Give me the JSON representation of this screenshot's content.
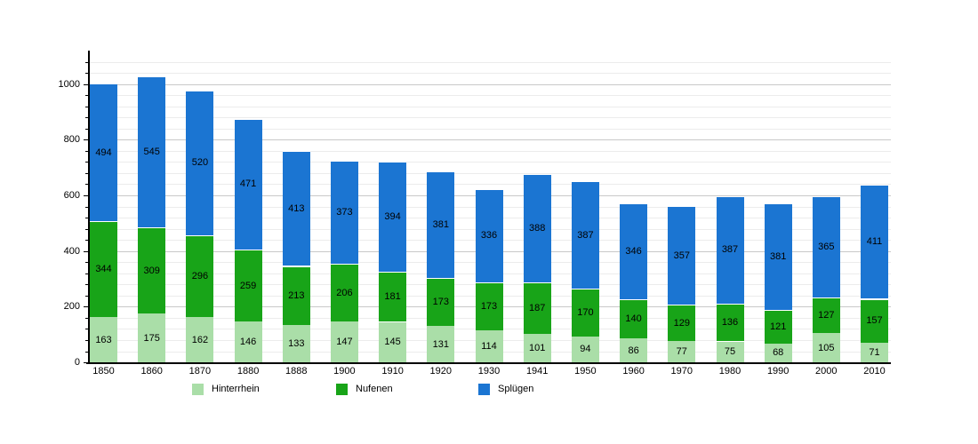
{
  "chart_data": {
    "type": "bar",
    "stacked": true,
    "title": "",
    "xlabel": "",
    "ylabel": "",
    "categories": [
      "1850",
      "1860",
      "1870",
      "1880",
      "1888",
      "1900",
      "1910",
      "1920",
      "1930",
      "1941",
      "1950",
      "1960",
      "1970",
      "1980",
      "1990",
      "2000",
      "2010"
    ],
    "series": [
      {
        "name": "Hinterrhein",
        "color": "#aadea8",
        "values": [
          163,
          175,
          162,
          146,
          133,
          147,
          145,
          131,
          114,
          101,
          94,
          86,
          77,
          75,
          68,
          105,
          71
        ]
      },
      {
        "name": "Nufenen",
        "color": "#18a418",
        "values": [
          344,
          309,
          296,
          259,
          213,
          206,
          181,
          173,
          173,
          187,
          170,
          140,
          129,
          136,
          121,
          127,
          157
        ]
      },
      {
        "name": "Splügen",
        "color": "#1b75d2",
        "values": [
          494,
          545,
          520,
          471,
          413,
          373,
          394,
          381,
          336,
          388,
          387,
          346,
          357,
          387,
          381,
          365,
          411
        ]
      }
    ],
    "y_ticks": [
      0,
      200,
      400,
      600,
      800,
      1000
    ],
    "y_minor_step": 40,
    "ylim": [
      0,
      1120
    ],
    "grid": true,
    "legend_position": "bottom",
    "bar_labels_shown": true
  }
}
